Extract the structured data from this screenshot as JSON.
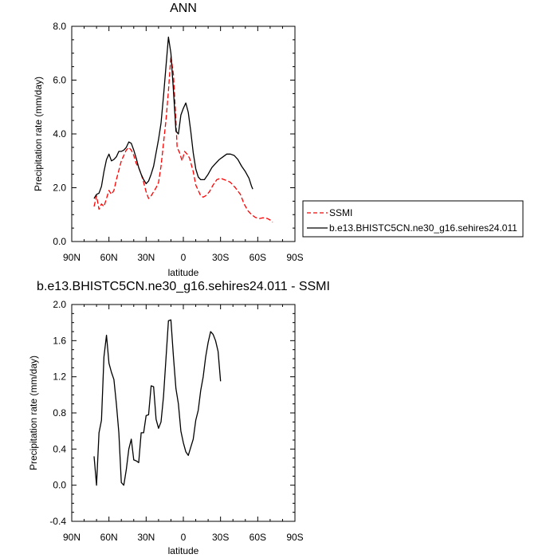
{
  "chart_data": [
    {
      "type": "line",
      "title": "ANN",
      "xlabel": "latitude",
      "ylabel": "Precipitation rate (mm/day)",
      "xlim": [
        90,
        -90
      ],
      "ylim": [
        0,
        8
      ],
      "xticks": [
        {
          "value": 90,
          "label": "90N"
        },
        {
          "value": 60,
          "label": "60N"
        },
        {
          "value": 30,
          "label": "30N"
        },
        {
          "value": 0,
          "label": "0"
        },
        {
          "value": -30,
          "label": "30S"
        },
        {
          "value": -60,
          "label": "60S"
        },
        {
          "value": -90,
          "label": "90S"
        }
      ],
      "yticks": [
        {
          "value": 0,
          "label": "0.0"
        },
        {
          "value": 2,
          "label": "2.0"
        },
        {
          "value": 4,
          "label": "4.0"
        },
        {
          "value": 6,
          "label": "6.0"
        },
        {
          "value": 8,
          "label": "8.0"
        }
      ],
      "series": [
        {
          "name": "SSMI",
          "color": "#ff0000",
          "dash": true,
          "points": [
            [
              72,
              1.3
            ],
            [
              70,
              1.7
            ],
            [
              68,
              1.2
            ],
            [
              66,
              1.4
            ],
            [
              64,
              1.3
            ],
            [
              62,
              1.6
            ],
            [
              60,
              1.9
            ],
            [
              58,
              1.75
            ],
            [
              56,
              1.9
            ],
            [
              54,
              2.3
            ],
            [
              50,
              3.0
            ],
            [
              46,
              3.4
            ],
            [
              44,
              3.5
            ],
            [
              42,
              3.4
            ],
            [
              40,
              3.2
            ],
            [
              38,
              2.9
            ],
            [
              36,
              2.75
            ],
            [
              34,
              2.5
            ],
            [
              32,
              2.2
            ],
            [
              30,
              1.85
            ],
            [
              28,
              1.6
            ],
            [
              26,
              1.7
            ],
            [
              24,
              1.85
            ],
            [
              22,
              2.0
            ],
            [
              20,
              2.2
            ],
            [
              18,
              2.8
            ],
            [
              14,
              4.5
            ],
            [
              12,
              5.6
            ],
            [
              10,
              6.9
            ],
            [
              8,
              6.2
            ],
            [
              6,
              4.5
            ],
            [
              5,
              3.5
            ],
            [
              3,
              3.3
            ],
            [
              1,
              3.0
            ],
            [
              -1,
              3.35
            ],
            [
              -3,
              3.25
            ],
            [
              -5,
              3.1
            ],
            [
              -8,
              2.6
            ],
            [
              -10,
              2.1
            ],
            [
              -14,
              1.7
            ],
            [
              -16,
              1.65
            ],
            [
              -18,
              1.7
            ],
            [
              -21,
              1.85
            ],
            [
              -24,
              2.1
            ],
            [
              -27,
              2.3
            ],
            [
              -30,
              2.35
            ],
            [
              -33,
              2.3
            ],
            [
              -36,
              2.25
            ],
            [
              -38,
              2.2
            ],
            [
              -42,
              2.0
            ],
            [
              -46,
              1.75
            ],
            [
              -49,
              1.4
            ],
            [
              -52,
              1.15
            ],
            [
              -55,
              1.0
            ],
            [
              -58,
              0.9
            ],
            [
              -61,
              0.85
            ],
            [
              -64,
              0.88
            ],
            [
              -66,
              0.88
            ],
            [
              -68,
              0.85
            ],
            [
              -70,
              0.8
            ],
            [
              -72,
              0.72
            ]
          ]
        },
        {
          "name": "b.e13.BHISTC5CN.ne30_g16.sehires24.011",
          "color": "#000000",
          "dash": false,
          "points": [
            [
              72,
              1.6
            ],
            [
              70,
              1.75
            ],
            [
              68,
              1.8
            ],
            [
              66,
              2.05
            ],
            [
              64,
              2.6
            ],
            [
              62,
              3.05
            ],
            [
              60,
              3.25
            ],
            [
              58,
              3.0
            ],
            [
              56,
              3.05
            ],
            [
              54,
              3.15
            ],
            [
              52,
              3.35
            ],
            [
              50,
              3.35
            ],
            [
              48,
              3.4
            ],
            [
              46,
              3.5
            ],
            [
              44,
              3.7
            ],
            [
              42,
              3.65
            ],
            [
              40,
              3.4
            ],
            [
              38,
              3.1
            ],
            [
              36,
              2.75
            ],
            [
              34,
              2.5
            ],
            [
              32,
              2.3
            ],
            [
              30,
              2.15
            ],
            [
              28,
              2.25
            ],
            [
              26,
              2.5
            ],
            [
              24,
              2.8
            ],
            [
              22,
              3.3
            ],
            [
              20,
              3.8
            ],
            [
              18,
              4.4
            ],
            [
              16,
              5.4
            ],
            [
              14,
              6.5
            ],
            [
              12,
              7.6
            ],
            [
              10,
              7.0
            ],
            [
              8,
              5.6
            ],
            [
              6,
              4.1
            ],
            [
              4,
              4.0
            ],
            [
              2,
              4.7
            ],
            [
              0,
              4.95
            ],
            [
              -2,
              5.15
            ],
            [
              -4,
              4.8
            ],
            [
              -6,
              4.1
            ],
            [
              -8,
              3.3
            ],
            [
              -10,
              2.7
            ],
            [
              -12,
              2.4
            ],
            [
              -14,
              2.3
            ],
            [
              -17,
              2.3
            ],
            [
              -20,
              2.5
            ],
            [
              -23,
              2.75
            ],
            [
              -26,
              2.9
            ],
            [
              -29,
              3.05
            ],
            [
              -32,
              3.15
            ],
            [
              -35,
              3.25
            ],
            [
              -38,
              3.25
            ],
            [
              -41,
              3.2
            ],
            [
              -44,
              3.05
            ],
            [
              -47,
              2.8
            ],
            [
              -50,
              2.6
            ],
            [
              -53,
              2.35
            ],
            [
              -55,
              2.05
            ],
            [
              -56,
              1.95
            ]
          ]
        }
      ],
      "legend": {
        "placement": "right",
        "border": true
      }
    },
    {
      "type": "line",
      "title": "b.e13.BHISTC5CN.ne30_g16.sehires24.011 - SSMI",
      "xlabel": "latitude",
      "ylabel": "Precipitation rate (mm/day)",
      "xlim": [
        90,
        -90
      ],
      "ylim": [
        -0.4,
        2.0
      ],
      "xticks": [
        {
          "value": 90,
          "label": "90N"
        },
        {
          "value": 60,
          "label": "60N"
        },
        {
          "value": 30,
          "label": "30N"
        },
        {
          "value": 0,
          "label": "0"
        },
        {
          "value": -30,
          "label": "30S"
        },
        {
          "value": -60,
          "label": "60S"
        },
        {
          "value": -90,
          "label": "90S"
        }
      ],
      "yticks": [
        {
          "value": -0.4,
          "label": "-0.4"
        },
        {
          "value": 0,
          "label": "0.0"
        },
        {
          "value": 0.4,
          "label": "0.4"
        },
        {
          "value": 0.8,
          "label": "0.8"
        },
        {
          "value": 1.2,
          "label": "1.2"
        },
        {
          "value": 1.6,
          "label": "1.6"
        },
        {
          "value": 2.0,
          "label": "2.0"
        }
      ],
      "series": [
        {
          "color": "#000000",
          "dash": false,
          "points": [
            [
              72,
              0.32
            ],
            [
              70,
              0.0
            ],
            [
              68,
              0.58
            ],
            [
              66,
              0.72
            ],
            [
              64,
              1.42
            ],
            [
              62,
              1.66
            ],
            [
              60,
              1.35
            ],
            [
              58,
              1.25
            ],
            [
              56,
              1.17
            ],
            [
              54,
              0.9
            ],
            [
              52,
              0.58
            ],
            [
              50,
              0.03
            ],
            [
              48,
              0.0
            ],
            [
              46,
              0.17
            ],
            [
              44,
              0.4
            ],
            [
              42,
              0.51
            ],
            [
              40,
              0.28
            ],
            [
              38,
              0.27
            ],
            [
              36,
              0.25
            ],
            [
              34,
              0.58
            ],
            [
              32,
              0.58
            ],
            [
              30,
              0.77
            ],
            [
              28,
              0.78
            ],
            [
              26,
              1.1
            ],
            [
              24,
              1.09
            ],
            [
              22,
              0.73
            ],
            [
              20,
              0.63
            ],
            [
              18,
              0.7
            ],
            [
              16,
              0.98
            ],
            [
              14,
              1.4
            ],
            [
              12,
              1.82
            ],
            [
              10,
              1.83
            ],
            [
              8,
              1.42
            ],
            [
              6,
              1.07
            ],
            [
              4,
              0.9
            ],
            [
              2,
              0.6
            ],
            [
              0,
              0.47
            ],
            [
              -2,
              0.37
            ],
            [
              -4,
              0.33
            ],
            [
              -6,
              0.42
            ],
            [
              -8,
              0.51
            ],
            [
              -10,
              0.72
            ],
            [
              -12,
              0.83
            ],
            [
              -14,
              1.05
            ],
            [
              -16,
              1.2
            ],
            [
              -18,
              1.42
            ],
            [
              -20,
              1.58
            ],
            [
              -22,
              1.7
            ],
            [
              -24,
              1.67
            ],
            [
              -26,
              1.6
            ],
            [
              -28,
              1.48
            ],
            [
              -30,
              1.15
            ]
          ]
        }
      ]
    }
  ]
}
